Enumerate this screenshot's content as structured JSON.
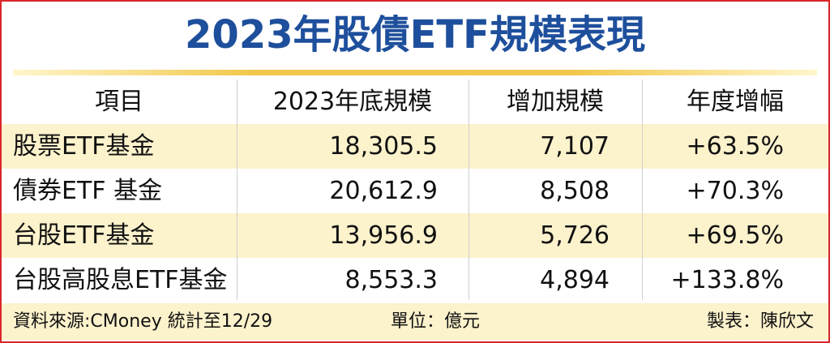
{
  "header": {
    "title": "2023年股債ETF規模表現"
  },
  "table": {
    "columns": [
      "項目",
      "2023年底規模",
      "增加規模",
      "年度增幅"
    ],
    "rows": [
      [
        "股票ETF基金",
        "18,305.5",
        "7,107",
        "+63.5%"
      ],
      [
        "債券ETF 基金",
        "20,612.9",
        "8,508",
        "+70.3%"
      ],
      [
        "台股ETF基金",
        "13,956.9",
        "5,726",
        "+69.5%"
      ],
      [
        "台股高股息ETF基金",
        "8,553.3",
        "4,894",
        "+133.8%"
      ]
    ]
  },
  "footer": {
    "source": "資料來源:CMoney 統計至12/29",
    "unit": "單位：億元",
    "credit": "製表：陳欣文"
  }
}
